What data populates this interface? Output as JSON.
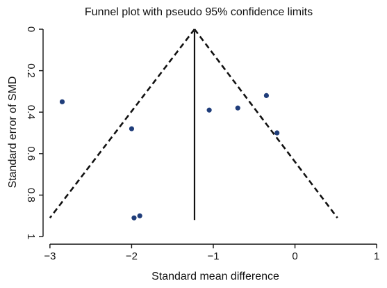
{
  "chart_data": {
    "type": "scatter",
    "title": "Funnel plot with pseudo 95% confidence limits",
    "xlabel": "Standard mean difference",
    "ylabel": "Standard error of SMD",
    "xlim": [
      -3.05,
      1.05
    ],
    "ylim": [
      0,
      1.02
    ],
    "y_axis_inverted": true,
    "grid": false,
    "x_ticks": [
      {
        "value": -3,
        "label": "−3"
      },
      {
        "value": -2,
        "label": "−2"
      },
      {
        "value": -1,
        "label": "−1"
      },
      {
        "value": 0,
        "label": "0"
      },
      {
        "value": 1,
        "label": "1"
      }
    ],
    "y_ticks": [
      {
        "value": 0,
        "label": "0"
      },
      {
        "value": 0.2,
        "label": "0.2"
      },
      {
        "value": 0.4,
        "label": "0.4"
      },
      {
        "value": 0.6,
        "label": "0.6"
      },
      {
        "value": 0.8,
        "label": "0.8"
      },
      {
        "value": 1,
        "label": "1"
      }
    ],
    "points": [
      {
        "x": -2.85,
        "y": 0.35
      },
      {
        "x": -2.0,
        "y": 0.48
      },
      {
        "x": -1.97,
        "y": 0.91
      },
      {
        "x": -1.9,
        "y": 0.9
      },
      {
        "x": -1.05,
        "y": 0.39
      },
      {
        "x": -0.7,
        "y": 0.38
      },
      {
        "x": -0.35,
        "y": 0.32
      },
      {
        "x": -0.22,
        "y": 0.5
      }
    ],
    "pooled_estimate": -1.23,
    "pooled_line_range": [
      0.01,
      0.92
    ],
    "confidence_limits": {
      "apex": {
        "x": -1.23,
        "y": 0
      },
      "left_end": {
        "x": -3.0,
        "y": 0.91
      },
      "right_end": {
        "x": 0.52,
        "y": 0.91
      }
    },
    "colors": {
      "points": "#1f3d7a",
      "lines": "#111111",
      "background": "#ffffff"
    }
  }
}
